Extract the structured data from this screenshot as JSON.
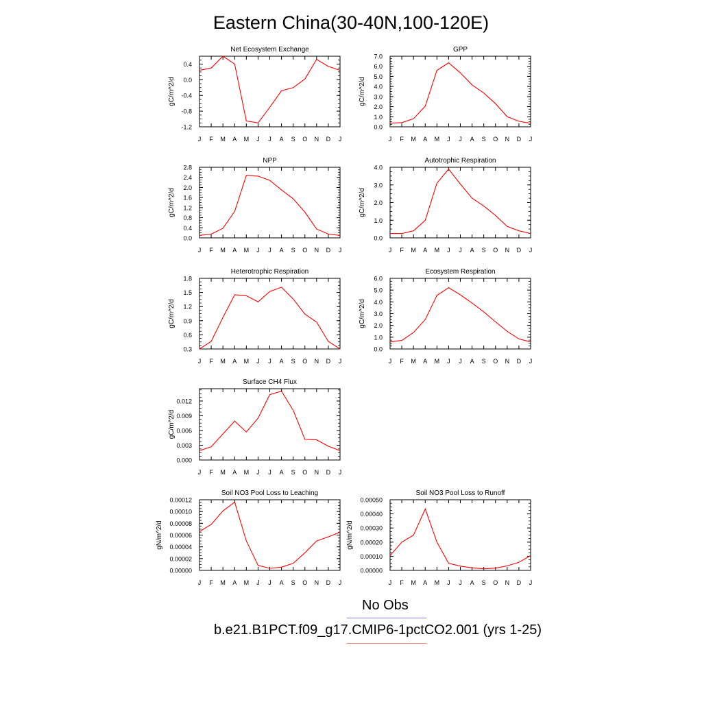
{
  "figure": {
    "title": "Eastern China(30-40N,100-120E)",
    "months": [
      "J",
      "F",
      "M",
      "A",
      "M",
      "J",
      "J",
      "A",
      "S",
      "O",
      "N",
      "D",
      "J"
    ]
  },
  "legend": [
    {
      "label": "No Obs",
      "color": "#8080ff"
    },
    {
      "label": "b.e21.B1PCT.f09_g17.CMIP6-1pctCO2.001 (yrs 1-25)",
      "color": "#ff8080"
    }
  ],
  "chart_data": [
    {
      "type": "line",
      "title": "Net Ecosystem Exchange",
      "ylabel": "gC/m^2/d",
      "ylim": [
        -1.2,
        0.6
      ],
      "yticks": [
        "0.4",
        "0.0",
        "-0.4",
        "-0.8",
        "-1.2"
      ],
      "ytick_values": [
        0.4,
        0.0,
        -0.4,
        -0.8,
        -1.2
      ],
      "values": [
        0.24,
        0.3,
        0.6,
        0.4,
        -1.05,
        -1.1,
        -0.7,
        -0.28,
        -0.2,
        0.02,
        0.52,
        0.34,
        0.24
      ],
      "color": "#ff0000"
    },
    {
      "type": "line",
      "title": "GPP",
      "ylabel": "gC/m^2/d",
      "ylim": [
        0,
        7
      ],
      "yticks": [
        "7.0",
        "6.0",
        "5.0",
        "4.0",
        "3.0",
        "2.0",
        "1.0",
        "0.0"
      ],
      "ytick_values": [
        7,
        6,
        5,
        4,
        3,
        2,
        1,
        0
      ],
      "values": [
        0.35,
        0.42,
        0.8,
        2.05,
        5.6,
        6.35,
        5.35,
        4.15,
        3.35,
        2.3,
        1.0,
        0.55,
        0.35
      ],
      "color": "#ff0000"
    },
    {
      "type": "line",
      "title": "NPP",
      "ylabel": "gC/m^2/d",
      "ylim": [
        0,
        2.8
      ],
      "yticks": [
        "2.8",
        "2.4",
        "2.0",
        "1.6",
        "1.2",
        "0.8",
        "0.4",
        "0.0"
      ],
      "ytick_values": [
        2.8,
        2.4,
        2.0,
        1.6,
        1.2,
        0.8,
        0.4,
        0.0
      ],
      "values": [
        0.1,
        0.15,
        0.38,
        1.05,
        2.48,
        2.45,
        2.28,
        1.9,
        1.55,
        1.02,
        0.35,
        0.15,
        0.1
      ],
      "color": "#ff0000"
    },
    {
      "type": "line",
      "title": "Autotrophic Respiration",
      "ylabel": "gC/m^2/d",
      "ylim": [
        0,
        4
      ],
      "yticks": [
        "4.0",
        "3.0",
        "2.0",
        "1.0",
        "0.0"
      ],
      "ytick_values": [
        4,
        3,
        2,
        1,
        0
      ],
      "values": [
        0.25,
        0.25,
        0.4,
        1.0,
        3.1,
        3.9,
        3.05,
        2.25,
        1.8,
        1.27,
        0.65,
        0.4,
        0.25
      ],
      "color": "#ff0000"
    },
    {
      "type": "line",
      "title": "Heterotrophic Respiration",
      "ylabel": "gC/m^2/d",
      "ylim": [
        0.3,
        1.8
      ],
      "yticks": [
        "1.8",
        "1.5",
        "1.2",
        "0.9",
        "0.6",
        "0.3"
      ],
      "ytick_values": [
        1.8,
        1.5,
        1.2,
        0.9,
        0.6,
        0.3
      ],
      "values": [
        0.3,
        0.46,
        0.97,
        1.45,
        1.43,
        1.3,
        1.52,
        1.61,
        1.36,
        1.04,
        0.87,
        0.46,
        0.3
      ],
      "color": "#ff0000"
    },
    {
      "type": "line",
      "title": "Ecosystem Respiration",
      "ylabel": "gC/m^2/d",
      "ylim": [
        0,
        6
      ],
      "yticks": [
        "6.0",
        "5.0",
        "4.0",
        "3.0",
        "2.0",
        "1.0",
        "0.0"
      ],
      "ytick_values": [
        6,
        5,
        4,
        3,
        2,
        1,
        0
      ],
      "values": [
        0.6,
        0.72,
        1.4,
        2.5,
        4.55,
        5.2,
        4.6,
        3.9,
        3.15,
        2.3,
        1.5,
        0.85,
        0.6
      ],
      "color": "#ff0000"
    },
    {
      "type": "line",
      "title": "Surface CH4 Flux",
      "ylabel": "gC/m^2/d",
      "ylim": [
        0,
        0.0145
      ],
      "yticks": [
        "0.012",
        "0.009",
        "0.006",
        "0.003",
        "0.000"
      ],
      "ytick_values": [
        0.012,
        0.009,
        0.006,
        0.003,
        0.0
      ],
      "values": [
        0.0019,
        0.0027,
        0.0053,
        0.0079,
        0.0057,
        0.0085,
        0.0133,
        0.014,
        0.0101,
        0.0042,
        0.0041,
        0.0028,
        0.0019
      ],
      "color": "#ff0000"
    },
    {
      "type": "line",
      "title": "Soil NO3 Pool Loss to Leaching",
      "ylabel": "gN/m^2/d",
      "ylim": [
        0,
        0.00012
      ],
      "yticks": [
        "0.00012",
        "0.00010",
        "0.00008",
        "0.00006",
        "0.00004",
        "0.00002",
        "0.00000"
      ],
      "ytick_values": [
        0.00012,
        0.0001,
        8e-05,
        6e-05,
        4e-05,
        2e-05,
        0
      ],
      "values": [
        6.6e-05,
        7.8e-05,
        0.000101,
        0.000116,
        5e-05,
        8.5e-06,
        3.5e-06,
        5.5e-06,
        1.2e-05,
        3e-05,
        5e-05,
        5.7e-05,
        6.5e-05
      ],
      "color": "#ff0000"
    },
    {
      "type": "line",
      "title": "Soil NO3 Pool Loss to Runoff",
      "ylabel": "gN/m^2/d",
      "ylim": [
        0,
        0.0005
      ],
      "yticks": [
        "0.00050",
        "0.00040",
        "0.00030",
        "0.00020",
        "0.00010",
        "0.00000"
      ],
      "ytick_values": [
        0.0005,
        0.0004,
        0.0003,
        0.0002,
        0.0001,
        0
      ],
      "values": [
        0.000105,
        0.0002,
        0.00025,
        0.000435,
        0.0002,
        5e-05,
        3e-05,
        1.8e-05,
        1.1e-05,
        1.6e-05,
        3.2e-05,
        5.7e-05,
        0.000105
      ],
      "color": "#ff0000"
    }
  ]
}
